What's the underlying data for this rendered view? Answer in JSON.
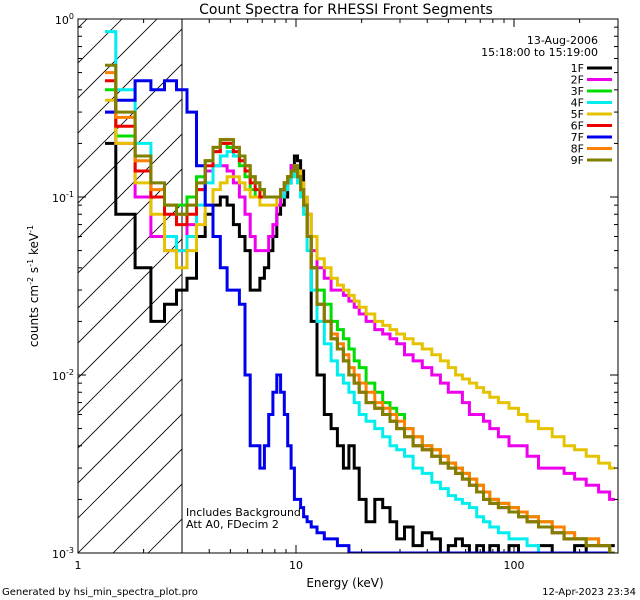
{
  "chart_data": {
    "type": "line",
    "title": "Count Spectra for RHESSI Front Segments",
    "xlabel": "Energy (keV)",
    "ylabel_main": "counts cm",
    "ylabel_sup1": "-2",
    "ylabel_mid": " s",
    "ylabel_sup2": "-1",
    "ylabel_end": " keV",
    "ylabel_sup3": "-1",
    "x_scale": "log",
    "y_scale": "log",
    "xlim": [
      1,
      300
    ],
    "ylim": [
      0.001,
      1
    ],
    "x_ticks": [
      {
        "v": 1,
        "label": "1"
      },
      {
        "v": 10,
        "label": "10"
      },
      {
        "v": 100,
        "label": "100"
      }
    ],
    "y_ticks": [
      {
        "v": 1,
        "base": "10",
        "exp": "0"
      },
      {
        "v": 0.1,
        "base": "10",
        "exp": "-1"
      },
      {
        "v": 0.01,
        "base": "10",
        "exp": "-2"
      },
      {
        "v": 0.001,
        "base": "10",
        "exp": "-3"
      }
    ],
    "date": "13-Aug-2006",
    "time_range": "15:18:00 to 15:19:00",
    "annotation_line1": "Includes Background",
    "annotation_line2": "Att A0, FDecim 2",
    "attenuator_cutoff_kev": 3,
    "energy_bins": [
      1.33,
      1.67,
      2,
      2.33,
      2.67,
      3,
      3.33,
      3.67,
      4,
      4.33,
      4.67,
      5,
      5.33,
      5.67,
      6,
      6.33,
      6.67,
      7,
      7.33,
      7.67,
      8,
      8.33,
      8.67,
      9,
      9.33,
      9.67,
      10,
      10.33,
      10.67,
      11,
      11.5,
      12,
      13,
      14,
      15,
      16,
      17,
      18,
      19,
      20,
      22,
      24,
      26,
      28,
      30,
      33,
      36,
      40,
      44,
      48,
      52,
      56,
      60,
      65,
      70,
      75,
      80,
      90,
      100,
      110,
      120,
      140,
      160,
      180,
      200,
      230,
      260,
      290
    ],
    "series": [
      {
        "name": "1F",
        "color": "#000000",
        "values": [
          0.2,
          0.08,
          0.04,
          0.02,
          0.025,
          0.03,
          0.035,
          0.06,
          0.08,
          0.09,
          0.1,
          0.09,
          0.07,
          0.06,
          0.05,
          0.03,
          0.03,
          0.035,
          0.04,
          0.05,
          0.06,
          0.08,
          0.09,
          0.1,
          0.12,
          0.15,
          0.17,
          0.16,
          0.14,
          0.1,
          0.06,
          0.02,
          0.01,
          0.006,
          0.005,
          0.004,
          0.003,
          0.004,
          0.003,
          0.002,
          0.0015,
          0.002,
          0.0018,
          0.0015,
          0.0012,
          0.0014,
          0.0011,
          0.0013,
          0.0012,
          0.001,
          0.0011,
          0.0012,
          0.0011,
          0.001,
          0.0011,
          0.001,
          0.0011,
          0.001,
          0.0011,
          0.001,
          0.001,
          0.0011,
          0.001,
          0.001,
          0.0011,
          0.001,
          0.001,
          0.0011
        ]
      },
      {
        "name": "2F",
        "color": "#ee00ee",
        "values": [
          0.3,
          0.2,
          0.1,
          0.06,
          0.05,
          0.05,
          0.07,
          0.11,
          0.14,
          0.15,
          0.15,
          0.14,
          0.12,
          0.1,
          0.08,
          0.06,
          0.05,
          0.05,
          0.05,
          0.06,
          0.07,
          0.09,
          0.1,
          0.12,
          0.13,
          0.15,
          0.15,
          0.14,
          0.12,
          0.1,
          0.08,
          0.05,
          0.04,
          0.035,
          0.03,
          0.03,
          0.028,
          0.026,
          0.024,
          0.022,
          0.02,
          0.018,
          0.017,
          0.016,
          0.015,
          0.013,
          0.012,
          0.011,
          0.01,
          0.009,
          0.008,
          0.008,
          0.007,
          0.006,
          0.006,
          0.0055,
          0.005,
          0.0045,
          0.004,
          0.004,
          0.0035,
          0.003,
          0.003,
          0.0028,
          0.0026,
          0.0024,
          0.0022,
          0.002
        ]
      },
      {
        "name": "3F",
        "color": "#00dd00",
        "values": [
          0.4,
          0.22,
          0.14,
          0.1,
          0.09,
          0.09,
          0.1,
          0.13,
          0.16,
          0.18,
          0.2,
          0.19,
          0.17,
          0.15,
          0.13,
          0.11,
          0.1,
          0.1,
          0.1,
          0.1,
          0.1,
          0.1,
          0.11,
          0.12,
          0.13,
          0.14,
          0.15,
          0.13,
          0.11,
          0.09,
          0.06,
          0.04,
          0.03,
          0.025,
          0.02,
          0.018,
          0.016,
          0.014,
          0.012,
          0.011,
          0.009,
          0.008,
          0.007,
          0.0065,
          0.006,
          0.005,
          0.0045,
          0.004,
          0.0038,
          0.0035,
          0.0032,
          0.003,
          0.0028,
          0.0026,
          0.0024,
          0.0022,
          0.002,
          0.0019,
          0.0018,
          0.0017,
          0.0016,
          0.0015,
          0.0014,
          0.0013,
          0.0012,
          0.0012,
          0.0011,
          0.001
        ]
      },
      {
        "name": "4F",
        "color": "#00eeee",
        "values": [
          0.85,
          0.4,
          0.2,
          0.1,
          0.06,
          0.05,
          0.06,
          0.09,
          0.12,
          0.15,
          0.17,
          0.18,
          0.17,
          0.16,
          0.14,
          0.13,
          0.12,
          0.11,
          0.1,
          0.1,
          0.1,
          0.1,
          0.1,
          0.11,
          0.12,
          0.13,
          0.14,
          0.12,
          0.1,
          0.08,
          0.05,
          0.03,
          0.02,
          0.015,
          0.012,
          0.01,
          0.009,
          0.008,
          0.007,
          0.006,
          0.0055,
          0.005,
          0.0045,
          0.004,
          0.0038,
          0.0035,
          0.003,
          0.0028,
          0.0025,
          0.0023,
          0.0021,
          0.002,
          0.0019,
          0.0018,
          0.0016,
          0.0015,
          0.0014,
          0.0013,
          0.0012,
          0.0012,
          0.0011,
          0.001,
          0.001,
          0.001,
          0.001,
          0.001,
          0.001,
          0.001
        ]
      },
      {
        "name": "5F",
        "color": "#e6c300",
        "values": [
          0.35,
          0.2,
          0.12,
          0.08,
          0.05,
          0.04,
          0.05,
          0.07,
          0.09,
          0.11,
          0.12,
          0.13,
          0.13,
          0.12,
          0.11,
          0.1,
          0.1,
          0.09,
          0.09,
          0.09,
          0.09,
          0.1,
          0.11,
          0.12,
          0.13,
          0.14,
          0.15,
          0.14,
          0.12,
          0.1,
          0.08,
          0.06,
          0.045,
          0.04,
          0.035,
          0.032,
          0.03,
          0.028,
          0.026,
          0.024,
          0.022,
          0.02,
          0.019,
          0.018,
          0.017,
          0.016,
          0.015,
          0.014,
          0.013,
          0.012,
          0.011,
          0.01,
          0.0095,
          0.009,
          0.0085,
          0.008,
          0.0075,
          0.007,
          0.0065,
          0.006,
          0.0055,
          0.005,
          0.0045,
          0.004,
          0.0038,
          0.0035,
          0.0032,
          0.003
        ]
      },
      {
        "name": "6F",
        "color": "#ee0000",
        "values": [
          0.45,
          0.25,
          0.14,
          0.1,
          0.08,
          0.07,
          0.08,
          0.11,
          0.15,
          0.18,
          0.2,
          0.2,
          0.18,
          0.16,
          0.14,
          0.12,
          0.11,
          0.1,
          0.1,
          0.1,
          0.1,
          0.1,
          0.11,
          0.12,
          0.13,
          0.14,
          0.15,
          0.13,
          0.11,
          0.09,
          0.06,
          0.04,
          0.025,
          0.02,
          0.016,
          0.014,
          0.012,
          0.01,
          0.009,
          0.008,
          0.007,
          0.0065,
          0.006,
          0.0055,
          0.005,
          0.0045,
          0.004,
          0.0038,
          0.0035,
          0.0032,
          0.003,
          0.0028,
          0.0026,
          0.0024,
          0.0022,
          0.002,
          0.0019,
          0.0018,
          0.0017,
          0.0016,
          0.0015,
          0.0014,
          0.0013,
          0.0012,
          0.0012,
          0.0011,
          0.0011,
          0.001
        ]
      },
      {
        "name": "7F",
        "color": "#0000ee",
        "values": [
          0.3,
          0.35,
          0.45,
          0.4,
          0.45,
          0.4,
          0.3,
          0.15,
          0.09,
          0.06,
          0.04,
          0.03,
          0.03,
          0.025,
          0.01,
          0.004,
          0.004,
          0.003,
          0.004,
          0.006,
          0.008,
          0.01,
          0.008,
          0.006,
          0.004,
          0.003,
          0.002,
          0.002,
          0.0018,
          0.0016,
          0.0015,
          0.0014,
          0.0013,
          0.0012,
          0.0012,
          0.0011,
          0.0011,
          0.001,
          0.001,
          0.001,
          0.001,
          0.001,
          0.001,
          0.001,
          0.001,
          0.001,
          0.001,
          0.001,
          0.001,
          0.001,
          0.001,
          0.001,
          0.001,
          0.001,
          0.001,
          0.001,
          0.001,
          0.001,
          0.001,
          0.001,
          0.001,
          0.001,
          0.001,
          0.001,
          0.001,
          0.001,
          0.001,
          0.001
        ]
      },
      {
        "name": "8F",
        "color": "#ff7f00",
        "values": [
          0.5,
          0.28,
          0.16,
          0.11,
          0.09,
          0.08,
          0.09,
          0.12,
          0.16,
          0.19,
          0.21,
          0.21,
          0.19,
          0.17,
          0.15,
          0.13,
          0.12,
          0.11,
          0.1,
          0.1,
          0.1,
          0.1,
          0.11,
          0.12,
          0.13,
          0.14,
          0.15,
          0.13,
          0.11,
          0.09,
          0.06,
          0.04,
          0.025,
          0.02,
          0.017,
          0.015,
          0.013,
          0.011,
          0.01,
          0.009,
          0.008,
          0.007,
          0.0065,
          0.006,
          0.0055,
          0.005,
          0.0045,
          0.004,
          0.0038,
          0.0035,
          0.0032,
          0.003,
          0.0028,
          0.0026,
          0.0024,
          0.0022,
          0.002,
          0.0019,
          0.0018,
          0.0017,
          0.0016,
          0.0015,
          0.0014,
          0.0013,
          0.0012,
          0.0012,
          0.0011,
          0.001
        ]
      },
      {
        "name": "9F",
        "color": "#7f7f00",
        "values": [
          0.55,
          0.3,
          0.17,
          0.12,
          0.09,
          0.08,
          0.09,
          0.12,
          0.16,
          0.19,
          0.21,
          0.21,
          0.19,
          0.17,
          0.15,
          0.13,
          0.12,
          0.11,
          0.1,
          0.1,
          0.1,
          0.1,
          0.11,
          0.12,
          0.13,
          0.14,
          0.15,
          0.13,
          0.11,
          0.09,
          0.06,
          0.04,
          0.025,
          0.02,
          0.016,
          0.014,
          0.012,
          0.01,
          0.009,
          0.008,
          0.007,
          0.0065,
          0.006,
          0.0055,
          0.005,
          0.0045,
          0.004,
          0.0038,
          0.0035,
          0.0032,
          0.003,
          0.0028,
          0.0026,
          0.0024,
          0.0022,
          0.002,
          0.0019,
          0.0018,
          0.0017,
          0.0016,
          0.0015,
          0.0014,
          0.0013,
          0.0012,
          0.0012,
          0.0011,
          0.0011,
          0.001
        ]
      }
    ]
  },
  "footer": {
    "generated_by": "Generated by hsi_min_spectra_plot.pro",
    "timestamp": "12-Apr-2023 23:34"
  }
}
